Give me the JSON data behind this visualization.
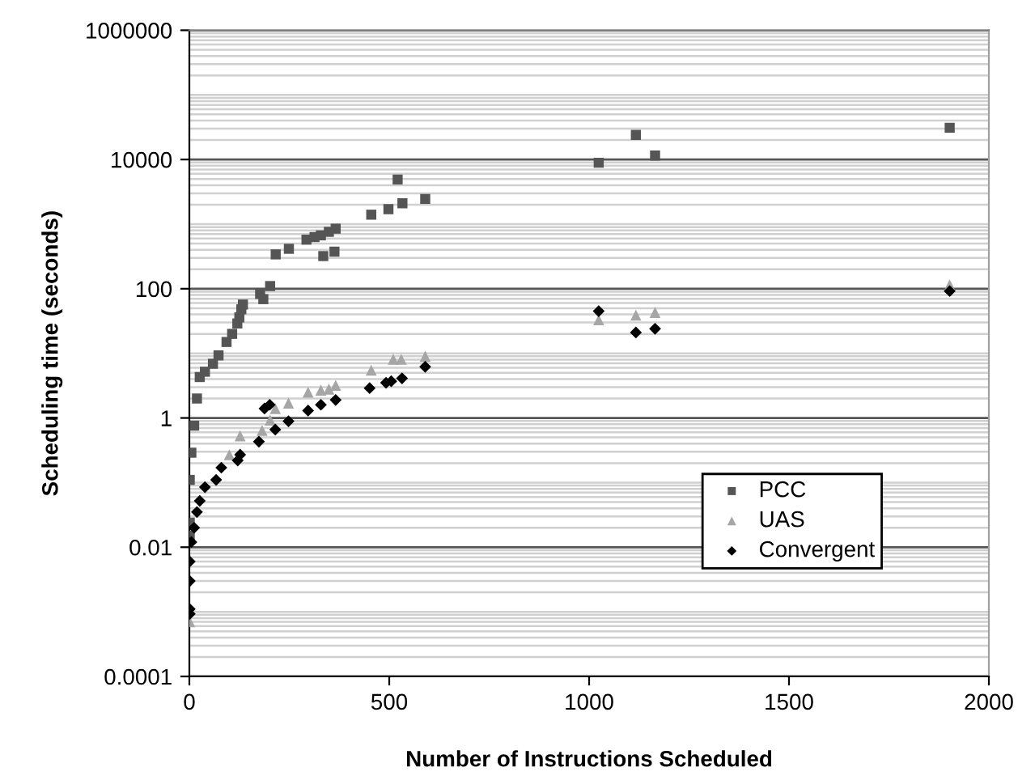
{
  "chart_data": {
    "type": "scatter",
    "xlabel": "Number of Instructions Scheduled",
    "ylabel": "Scheduling time (seconds)",
    "log": "y",
    "xlim": [
      0,
      2000
    ],
    "xticks": [
      0,
      500,
      1000,
      1500,
      2000
    ],
    "ylim": [
      0.0001,
      1000000
    ],
    "yticks": [
      {
        "value": 0.0001,
        "label": "0.0001"
      },
      {
        "value": 0.01,
        "label": "0.01"
      },
      1,
      100,
      10000,
      1000000
    ],
    "grid": "y",
    "legend": "bottom right",
    "series": [
      {
        "name": "PCC",
        "color": "#555555",
        "marker": "square",
        "x": [
          1,
          1,
          1,
          5,
          12,
          19,
          26,
          39,
          59,
          73,
          93,
          107,
          120,
          125,
          130,
          134,
          177,
          185,
          202,
          216,
          249,
          293,
          313,
          329,
          335,
          349,
          363,
          366,
          455,
          498,
          521,
          533,
          590,
          1024,
          1117,
          1165,
          1902
        ],
        "values": [
          0.015,
          0.024,
          0.11,
          0.29,
          0.76,
          2,
          4.3,
          5.2,
          6.9,
          9.3,
          15,
          20,
          29,
          36,
          48,
          57,
          83,
          69,
          110,
          340,
          415,
          575,
          630,
          670,
          320,
          760,
          375,
          850,
          1400,
          1700,
          4900,
          2100,
          2450,
          8900,
          24000,
          11500,
          31000
        ]
      },
      {
        "name": "UAS",
        "color": "#a6a6a6",
        "marker": "triangle",
        "x": [
          1,
          100,
          127,
          182,
          202,
          215,
          248,
          297,
          329,
          349,
          366,
          455,
          510,
          530,
          590,
          1024,
          1117,
          1165,
          1902
        ],
        "values": [
          0.0007,
          0.27,
          0.53,
          0.64,
          0.93,
          1.4,
          1.7,
          2.5,
          2.7,
          2.8,
          3.2,
          5.5,
          8.1,
          8.1,
          9,
          33,
          39,
          43,
          115
        ]
      },
      {
        "name": "Convergent",
        "color": "#000000",
        "marker": "diamond",
        "x": [
          1,
          1,
          1,
          1,
          5,
          12,
          19,
          26,
          39,
          67,
          80,
          121,
          127,
          174,
          188,
          201,
          215,
          248,
          297,
          329,
          366,
          451,
          492,
          505,
          532,
          590,
          1024,
          1117,
          1165,
          1902
        ],
        "values": [
          0.00093,
          0.0011,
          0.003,
          0.006,
          0.012,
          0.02,
          0.035,
          0.052,
          0.085,
          0.11,
          0.17,
          0.22,
          0.27,
          0.43,
          1.4,
          1.6,
          0.66,
          0.89,
          1.3,
          1.6,
          1.9,
          2.9,
          3.5,
          3.7,
          4.1,
          6.2,
          45,
          21,
          24,
          92
        ]
      }
    ]
  }
}
